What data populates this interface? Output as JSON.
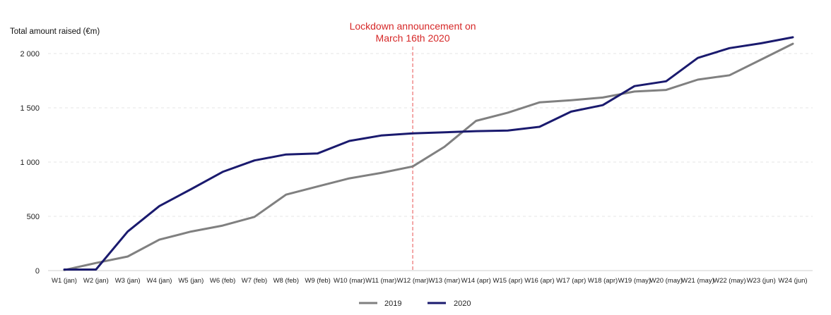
{
  "chart_data": {
    "type": "line",
    "title": "",
    "ylabel": "Total amount raised (€m)",
    "xlabel": "",
    "ylim": [
      0,
      2200
    ],
    "yticks": [
      0,
      500,
      1000,
      1500,
      2000
    ],
    "ytick_labels": [
      "0",
      "500",
      "1 000",
      "1 500",
      "2 000"
    ],
    "grid": true,
    "legend_position": "bottom-center",
    "categories": [
      "W1 (jan)",
      "W2 (jan)",
      "W3 (jan)",
      "W4 (jan)",
      "W5 (jan)",
      "W6 (feb)",
      "W7 (feb)",
      "W8 (feb)",
      "W9 (feb)",
      "W10 (mar)",
      "W11 (mar)",
      "W12 (mar)",
      "W13 (mar)",
      "W14 (apr)",
      "W15 (apr)",
      "W16 (apr)",
      "W17 (apr)",
      "W18 (apr)",
      "W19 (may)",
      "W20 (may)",
      "W21 (may)",
      "W22 (may)",
      "W23 (jun)",
      "W24 (jun)"
    ],
    "series": [
      {
        "name": "2019",
        "color": "#808080",
        "values": [
          5,
          70,
          130,
          285,
          360,
          415,
          495,
          700,
          775,
          850,
          900,
          960,
          1140,
          1380,
          1455,
          1550,
          1570,
          1595,
          1650,
          1665,
          1760,
          1800,
          1945,
          2090
        ]
      },
      {
        "name": "2020",
        "color": "#1a1a6e",
        "values": [
          10,
          10,
          360,
          595,
          750,
          910,
          1015,
          1070,
          1080,
          1195,
          1245,
          1265,
          1275,
          1285,
          1290,
          1325,
          1465,
          1525,
          1700,
          1745,
          1960,
          2050,
          2095,
          2150
        ]
      }
    ],
    "annotation": {
      "lines": [
        "Lockdown announcement on",
        "March 16th 2020"
      ],
      "at_category": "W12 (mar)",
      "line_color": "#f08a8a",
      "text_color": "#d62828"
    }
  }
}
